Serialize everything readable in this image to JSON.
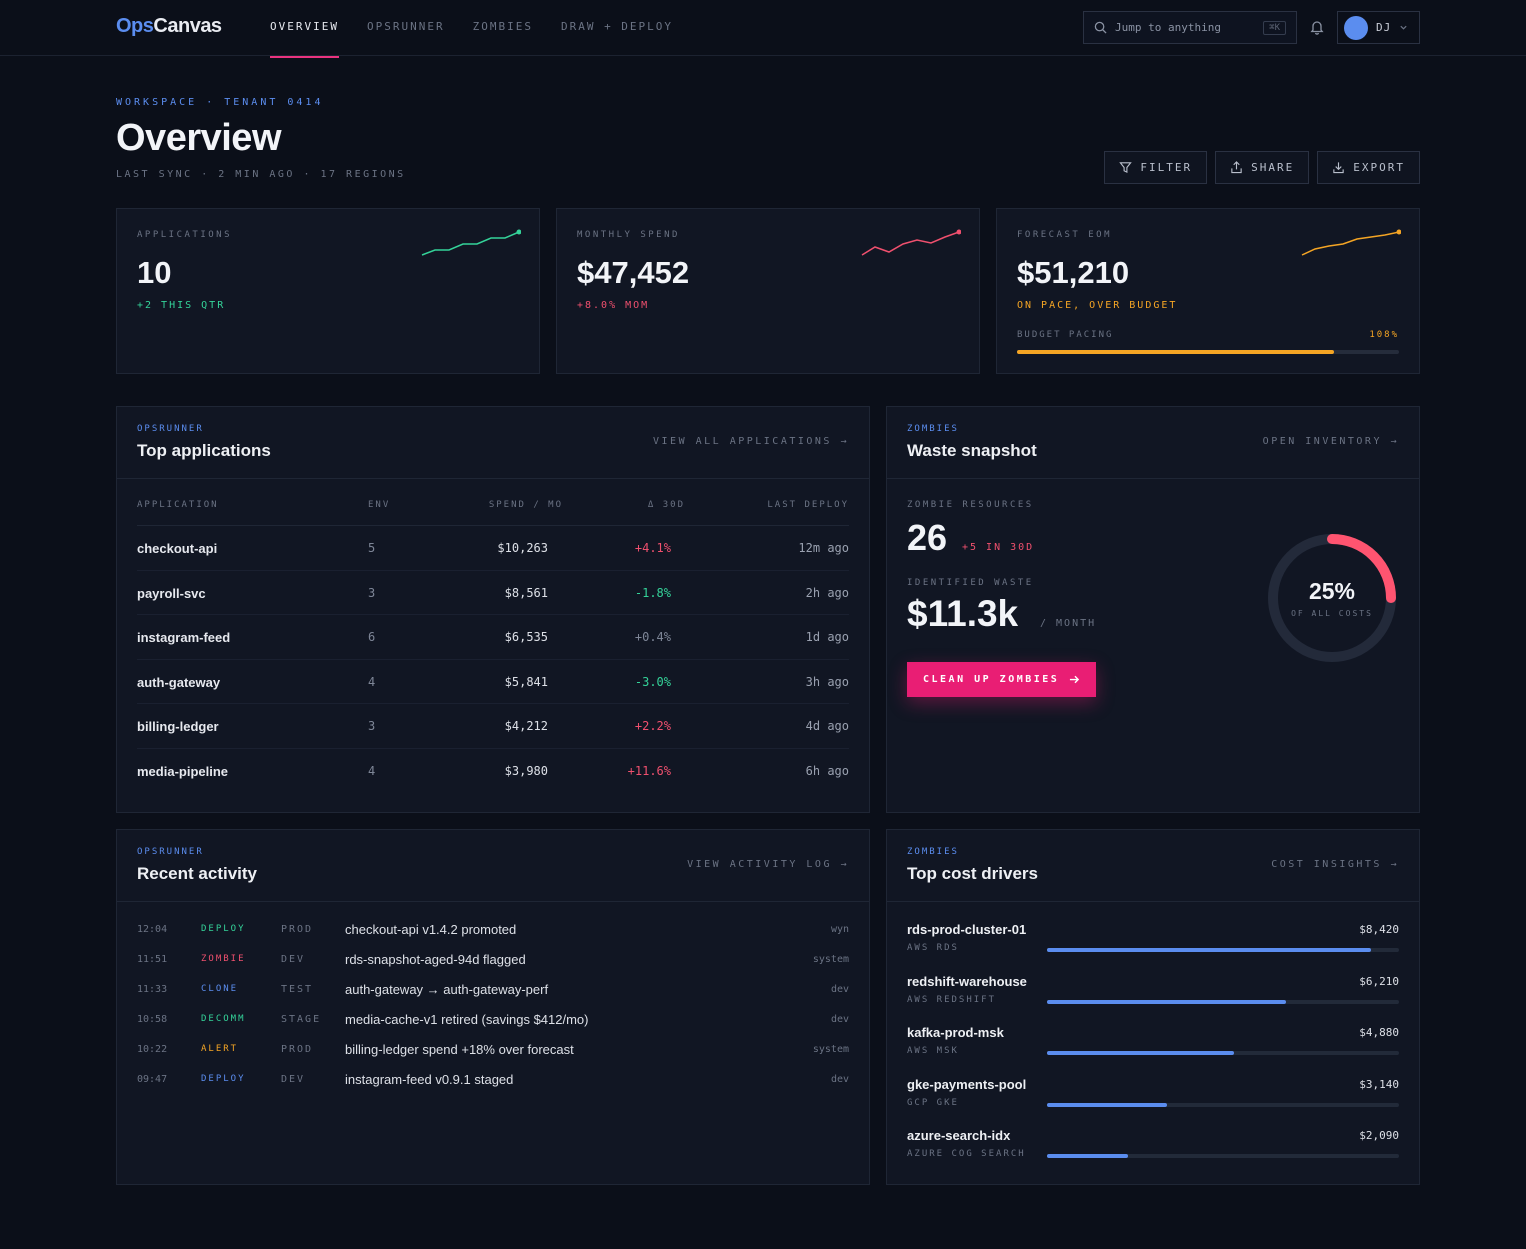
{
  "app": {
    "logo_a": "Ops",
    "logo_b": "Canvas"
  },
  "nav": [
    {
      "label": "OVERVIEW",
      "active": true
    },
    {
      "label": "OPSRUNNER",
      "active": false
    },
    {
      "label": "ZOMBIES",
      "active": false
    },
    {
      "label": "DRAW + DEPLOY",
      "active": false
    }
  ],
  "search": {
    "placeholder": "Jump to anything",
    "shortcut": "⌘K"
  },
  "user": {
    "initials": "DJ"
  },
  "header": {
    "eyebrow": "WORKSPACE · TENANT 0414",
    "title": "Overview",
    "subline": "LAST SYNC · 2 MIN AGO · 17 REGIONS"
  },
  "actions": {
    "filter": "FILTER",
    "share": "SHARE",
    "export": "EXPORT"
  },
  "kpis": {
    "applications": {
      "label": "APPLICATIONS",
      "value": "10",
      "delta": "+2 THIS QTR",
      "color": "#34d399"
    },
    "spend": {
      "label": "MONTHLY SPEND",
      "value": "$47,452",
      "delta": "+8.0% MOM",
      "color": "#f0506e"
    },
    "forecast": {
      "label": "FORECAST EOM",
      "value": "$51,210",
      "delta": "ON PACE, OVER BUDGET",
      "color": "#f5a524",
      "pacing_label": "BUDGET PACING",
      "pacing_pct": "108%",
      "pacing_fill": 0.83
    }
  },
  "apps": {
    "kicker": "OPSRUNNER",
    "title": "Top applications",
    "link": "VIEW ALL APPLICATIONS →",
    "columns": {
      "name": "APPLICATION",
      "env": "ENV",
      "spend": "SPEND / MO",
      "delta": "Δ 30D",
      "deploy": "LAST DEPLOY"
    },
    "rows": [
      {
        "name": "checkout-api",
        "env": "5",
        "spend": "$10,263",
        "delta": "+4.1%",
        "trend": "up",
        "deploy": "12m ago"
      },
      {
        "name": "payroll-svc",
        "env": "3",
        "spend": "$8,561",
        "delta": "-1.8%",
        "trend": "down",
        "deploy": "2h ago"
      },
      {
        "name": "instagram-feed",
        "env": "6",
        "spend": "$6,535",
        "delta": "+0.4%",
        "trend": "flat",
        "deploy": "1d ago"
      },
      {
        "name": "auth-gateway",
        "env": "4",
        "spend": "$5,841",
        "delta": "-3.0%",
        "trend": "down",
        "deploy": "3h ago"
      },
      {
        "name": "billing-ledger",
        "env": "3",
        "spend": "$4,212",
        "delta": "+2.2%",
        "trend": "up",
        "deploy": "4d ago"
      },
      {
        "name": "media-pipeline",
        "env": "4",
        "spend": "$3,980",
        "delta": "+11.6%",
        "trend": "up",
        "deploy": "6h ago"
      }
    ]
  },
  "waste": {
    "kicker": "ZOMBIES",
    "title": "Waste snapshot",
    "link": "OPEN INVENTORY →",
    "resources_label": "ZOMBIE RESOURCES",
    "resources_value": "26",
    "resources_delta": "+5 IN 30D",
    "waste_label": "IDENTIFIED WASTE",
    "waste_value": "$11.3k",
    "waste_unit": "/ MONTH",
    "cta": "CLEAN UP ZOMBIES",
    "donut_pct": "25%",
    "donut_fraction": 0.25,
    "donut_sub": "OF ALL COSTS",
    "accent": "#ff5470"
  },
  "activity": {
    "kicker": "OPSRUNNER",
    "title": "Recent activity",
    "link": "VIEW ACTIVITY LOG →",
    "rows": [
      {
        "time": "12:04",
        "type": "DEPLOY",
        "type_color": "#34d399",
        "env": "PROD",
        "msg": "checkout-api v1.4.2 promoted",
        "actor": "wyn"
      },
      {
        "time": "11:51",
        "type": "ZOMBIE",
        "type_color": "#f0506e",
        "env": "DEV",
        "msg": "rds-snapshot-aged-94d flagged",
        "actor": "system"
      },
      {
        "time": "11:33",
        "type": "CLONE",
        "type_color": "#5b8def",
        "env": "TEST",
        "msg": "auth-gateway → auth-gateway-perf",
        "actor": "dev"
      },
      {
        "time": "10:58",
        "type": "DECOMM",
        "type_color": "#34d399",
        "env": "STAGE",
        "msg": "media-cache-v1 retired (savings $412/mo)",
        "actor": "dev"
      },
      {
        "time": "10:22",
        "type": "ALERT",
        "type_color": "#f5a524",
        "env": "PROD",
        "msg": "billing-ledger spend +18% over forecast",
        "actor": "system"
      },
      {
        "time": "09:47",
        "type": "DEPLOY",
        "type_color": "#5b8def",
        "env": "DEV",
        "msg": "instagram-feed v0.9.1 staged",
        "actor": "dev"
      }
    ]
  },
  "drivers": {
    "kicker": "ZOMBIES",
    "title": "Top cost drivers",
    "link": "COST INSIGHTS →",
    "rows": [
      {
        "name": "rds-prod-cluster-01",
        "svc": "AWS RDS",
        "cost": "$8,420",
        "share": 0.92
      },
      {
        "name": "redshift-warehouse",
        "svc": "AWS REDSHIFT",
        "cost": "$6,210",
        "share": 0.68
      },
      {
        "name": "kafka-prod-msk",
        "svc": "AWS MSK",
        "cost": "$4,880",
        "share": 0.53
      },
      {
        "name": "gke-payments-pool",
        "svc": "GCP GKE",
        "cost": "$3,140",
        "share": 0.34
      },
      {
        "name": "azure-search-idx",
        "svc": "AZURE COG SEARCH",
        "cost": "$2,090",
        "share": 0.23
      }
    ]
  }
}
